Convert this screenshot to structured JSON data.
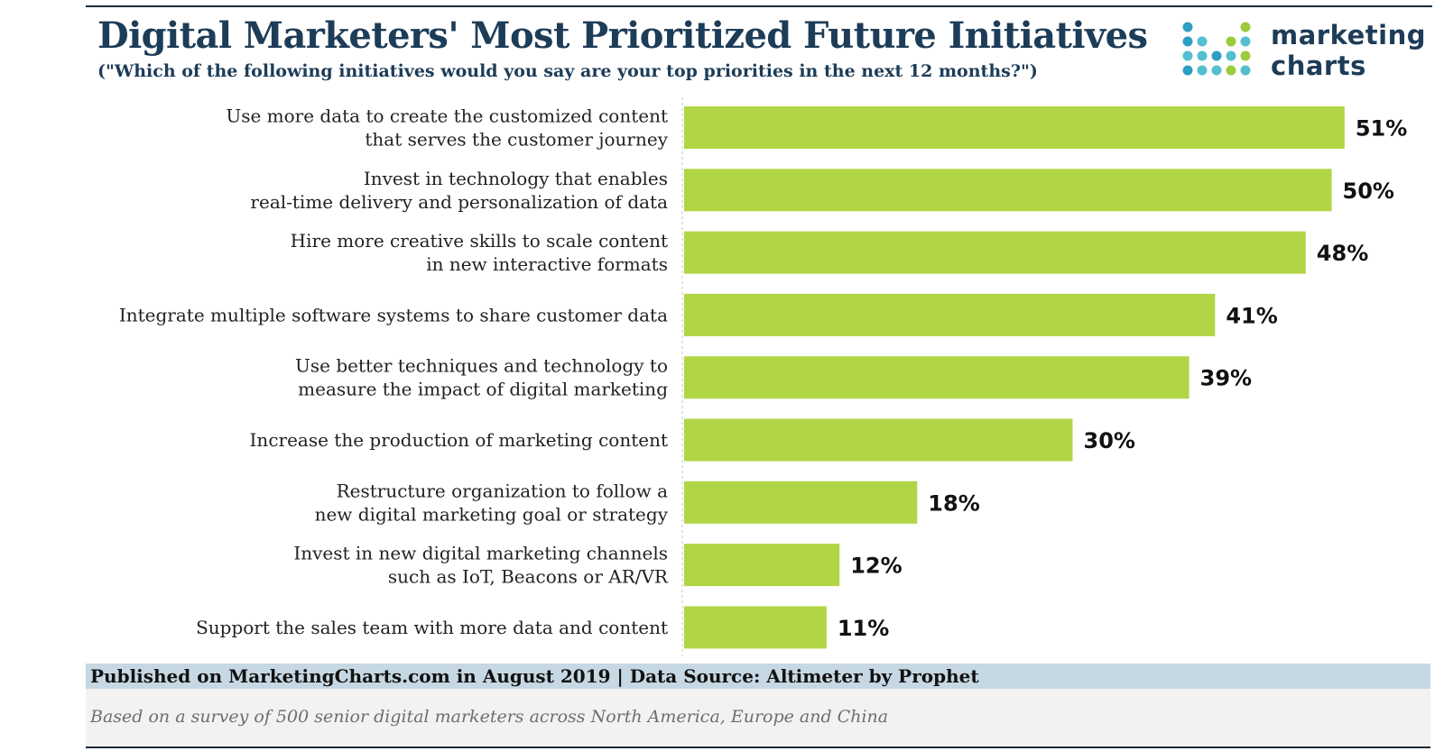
{
  "header": {
    "title": "Digital Marketers' Most Prioritized Future Initiatives",
    "subtitle": "(\"Which of the following initiatives would you say are your top priorities in the next 12 months?\")"
  },
  "logo": {
    "line1": "marketing",
    "line2": "charts",
    "dot_colors": [
      "#2c9fc2",
      "#53bfd0",
      "#9ccb3b"
    ]
  },
  "chart_data": {
    "type": "bar",
    "orientation": "horizontal",
    "title": "Digital Marketers' Most Prioritized Future Initiatives",
    "xlabel": "",
    "ylabel": "",
    "xlim": [
      0,
      51
    ],
    "grid": false,
    "legend": "none",
    "bar_color": "#b0d645",
    "categories": [
      [
        "Use more data to create the customized content",
        "that serves the customer journey"
      ],
      [
        "Invest in technology that enables",
        "real-time delivery and personalization of data"
      ],
      [
        "Hire more creative skills to scale content",
        "in new interactive formats"
      ],
      [
        "Integrate multiple software systems to share customer data"
      ],
      [
        "Use better techniques and technology to",
        "measure the impact of digital marketing"
      ],
      [
        "Increase the production of marketing content"
      ],
      [
        "Restructure organization to follow a",
        "new digital marketing goal or strategy"
      ],
      [
        "Invest in new digital marketing channels",
        "such as IoT, Beacons or AR/VR"
      ],
      [
        "Support the sales team with more data and content"
      ]
    ],
    "values": [
      51,
      50,
      48,
      41,
      39,
      30,
      18,
      12,
      11
    ],
    "value_labels": [
      "51%",
      "50%",
      "48%",
      "41%",
      "39%",
      "30%",
      "18%",
      "12%",
      "11%"
    ]
  },
  "footer": {
    "source": "Published on MarketingCharts.com in August 2019 | Data Source: Altimeter by Prophet",
    "note": "Based on a survey of 500 senior digital marketers across North America, Europe and China"
  }
}
